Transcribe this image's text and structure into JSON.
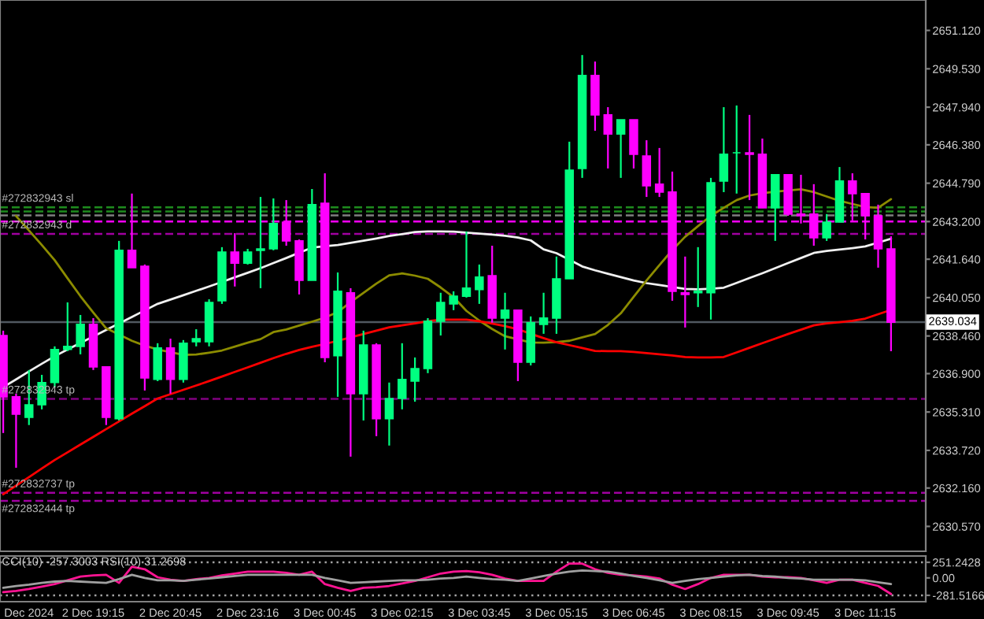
{
  "chart_data": [
    {
      "type": "candlestick",
      "categories": [
        null,
        null,
        null,
        null,
        null,
        null,
        null,
        null,
        null,
        null,
        null,
        null,
        null,
        null,
        null,
        null,
        null,
        null,
        null,
        null,
        null,
        null,
        null,
        null,
        null,
        null,
        null,
        null,
        null,
        null,
        null,
        null,
        null,
        null,
        null,
        null,
        null,
        null,
        null,
        null,
        null,
        null,
        null,
        null,
        null,
        null,
        null,
        null,
        null,
        null,
        null,
        null,
        null,
        null,
        null,
        null,
        null,
        null,
        null,
        null,
        null,
        null,
        null,
        null,
        null,
        null,
        null,
        null,
        null,
        null
      ],
      "ohlc": [
        [
          2638.48,
          2638.68,
          2634.44,
          2635.94
        ],
        [
          2635.94,
          2636.07,
          2633.0,
          2635.22
        ],
        [
          2635.09,
          2637.05,
          2634.77,
          2635.61
        ],
        [
          2635.61,
          2636.85,
          2635.42,
          2636.53
        ],
        [
          2636.53,
          2638.03,
          2636.33,
          2637.9
        ],
        [
          2637.9,
          2639.85,
          2637.83,
          2638.03
        ],
        [
          2638.03,
          2639.33,
          2637.7,
          2638.94
        ],
        [
          2638.94,
          2639.2,
          2637.05,
          2637.18
        ],
        [
          2637.18,
          2637.18,
          2634.77,
          2635.09
        ],
        [
          2635.03,
          2642.4,
          2634.96,
          2642.01
        ],
        [
          2642.01,
          2644.36,
          2641.29,
          2641.29
        ],
        [
          2641.35,
          2641.42,
          2636.2,
          2636.72
        ],
        [
          2636.66,
          2638.16,
          2636.59,
          2637.96
        ],
        [
          2637.96,
          2638.35,
          2636.07,
          2636.66
        ],
        [
          2636.66,
          2638.29,
          2636.53,
          2638.16
        ],
        [
          2638.22,
          2638.74,
          2638.03,
          2638.35
        ],
        [
          2638.22,
          2639.98,
          2638.03,
          2639.85
        ],
        [
          2639.92,
          2642.14,
          2639.79,
          2641.94
        ],
        [
          2641.94,
          2642.72,
          2640.51,
          2641.48
        ],
        [
          2641.48,
          2642.07,
          2641.42,
          2641.94
        ],
        [
          2642.01,
          2644.22,
          2640.44,
          2642.07
        ],
        [
          2642.07,
          2644.16,
          2642.01,
          2643.12
        ],
        [
          2643.18,
          2644.09,
          2642.2,
          2642.4
        ],
        [
          2642.4,
          2642.46,
          2640.18,
          2640.77
        ],
        [
          2640.77,
          2644.55,
          2640.77,
          2643.9
        ],
        [
          2643.96,
          2645.2,
          2637.37,
          2637.57
        ],
        [
          2637.64,
          2641.09,
          2635.94,
          2640.31
        ],
        [
          2640.25,
          2640.44,
          2633.46,
          2636.07
        ],
        [
          2636.07,
          2638.68,
          2634.96,
          2638.09
        ],
        [
          2638.09,
          2638.16,
          2634.31,
          2635.03
        ],
        [
          2635.03,
          2636.53,
          2633.92,
          2635.87
        ],
        [
          2635.87,
          2638.16,
          2635.42,
          2636.66
        ],
        [
          2636.59,
          2637.57,
          2635.74,
          2637.11
        ],
        [
          2637.11,
          2639.2,
          2636.92,
          2639.07
        ],
        [
          2639.07,
          2640.25,
          2638.48,
          2639.85
        ],
        [
          2639.79,
          2640.31,
          2639.53,
          2640.11
        ],
        [
          2640.11,
          2642.79,
          2640.05,
          2640.44
        ],
        [
          2640.38,
          2641.42,
          2639.79,
          2640.9
        ],
        [
          2640.96,
          2642.2,
          2639.01,
          2639.2
        ],
        [
          2639.2,
          2640.25,
          2637.9,
          2639.53
        ],
        [
          2639.53,
          2639.53,
          2636.59,
          2637.37
        ],
        [
          2637.37,
          2639.27,
          2637.24,
          2639.01
        ],
        [
          2638.94,
          2640.25,
          2638.55,
          2639.2
        ],
        [
          2639.2,
          2641.75,
          2638.55,
          2640.83
        ],
        [
          2640.83,
          2646.51,
          2640.83,
          2645.33
        ],
        [
          2645.4,
          2650.1,
          2645.01,
          2649.25
        ],
        [
          2649.25,
          2649.83,
          2646.96,
          2647.62
        ],
        [
          2647.62,
          2647.94,
          2645.4,
          2646.83
        ],
        [
          2646.83,
          2647.42,
          2645.01,
          2647.42
        ],
        [
          2647.42,
          2647.42,
          2645.4,
          2645.99
        ],
        [
          2645.92,
          2646.57,
          2644.22,
          2644.68
        ],
        [
          2644.75,
          2646.25,
          2644.22,
          2644.42
        ],
        [
          2644.42,
          2645.27,
          2639.92,
          2640.31
        ],
        [
          2640.25,
          2641.75,
          2638.81,
          2640.18
        ],
        [
          2640.25,
          2642.14,
          2639.66,
          2640.31
        ],
        [
          2640.25,
          2645.01,
          2639.14,
          2644.81
        ],
        [
          2644.88,
          2647.94,
          2644.42,
          2645.99
        ],
        [
          2646.05,
          2648.01,
          2644.36,
          2646.05
        ],
        [
          2646.05,
          2647.62,
          2644.09,
          2645.99
        ],
        [
          2645.99,
          2646.64,
          2643.77,
          2643.77
        ],
        [
          2643.77,
          2645.14,
          2642.4,
          2645.14
        ],
        [
          2645.14,
          2645.14,
          2643.44,
          2643.51
        ],
        [
          2643.51,
          2645.14,
          2643.12,
          2643.44
        ],
        [
          2643.51,
          2644.75,
          2642.2,
          2642.53
        ],
        [
          2642.53,
          2643.51,
          2642.4,
          2643.18
        ],
        [
          2643.18,
          2645.46,
          2643.18,
          2644.88
        ],
        [
          2644.88,
          2645.2,
          2643.25,
          2644.36
        ],
        [
          2644.36,
          2644.36,
          2642.46,
          2643.44
        ],
        [
          2643.44,
          2643.9,
          2641.29,
          2642.07
        ],
        [
          2642.07,
          2642.59,
          2637.83,
          2639.03
        ]
      ],
      "colors": [
        "#ff00ff",
        "#ff00ff",
        "#00ff80",
        "#00ff80",
        "#00ff80",
        "#00ff80",
        "#00ff80",
        "#ff00ff",
        "#ff00ff",
        "#00ff80",
        "#ff00ff",
        "#ff00ff",
        "#00ff80",
        "#ff00ff",
        "#00ff80",
        "#00ff80",
        "#00ff80",
        "#00ff80",
        "#ff00ff",
        "#00ff80",
        "#00ff80",
        "#00ff80",
        "#ff00ff",
        "#ff00ff",
        "#00ff80",
        "#ff00ff",
        "#00ff80",
        "#ff00ff",
        "#00ff80",
        "#ff00ff",
        "#00ff80",
        "#00ff80",
        "#00ff80",
        "#00ff80",
        "#00ff80",
        "#00ff80",
        "#00ff80",
        "#00ff80",
        "#ff00ff",
        "#00ff80",
        "#ff00ff",
        "#00ff80",
        "#00ff80",
        "#00ff80",
        "#00ff80",
        "#00ff80",
        "#ff00ff",
        "#ff00ff",
        "#00ff80",
        "#ff00ff",
        "#ff00ff",
        "#ff00ff",
        "#ff00ff",
        "#ff00ff",
        "#00ff80",
        "#00ff80",
        "#00ff80",
        "#00ff80",
        "#ff00ff",
        "#ff00ff",
        "#00ff80",
        "#ff00ff",
        "#ff00ff",
        "#ff00ff",
        "#00ff80",
        "#00ff80",
        "#ff00ff",
        "#ff00ff",
        "#ff00ff",
        "#ff00ff"
      ],
      "series": [
        {
          "type": "line",
          "color": "#f0f0f0",
          "values": [
            2636.34,
            2636.66,
            2636.99,
            2637.31,
            2637.62,
            2637.9,
            2638.17,
            2638.44,
            2638.71,
            2638.98,
            2639.25,
            2639.52,
            2639.79,
            2639.97,
            2640.15,
            2640.33,
            2640.51,
            2640.7,
            2640.89,
            2641.08,
            2641.27,
            2641.48,
            2641.69,
            2641.91,
            2642.12,
            2642.18,
            2642.23,
            2642.32,
            2642.41,
            2642.5,
            2642.6,
            2642.68,
            2642.77,
            2642.79,
            2642.79,
            2642.78,
            2642.74,
            2642.7,
            2642.66,
            2642.61,
            2642.54,
            2642.42,
            2642.05,
            2641.89,
            2641.62,
            2641.34,
            2641.18,
            2641.04,
            2640.9,
            2640.76,
            2640.65,
            2640.57,
            2640.49,
            2640.41,
            2640.39,
            2640.42,
            2640.46,
            2640.66,
            2640.86,
            2641.06,
            2641.27,
            2641.48,
            2641.69,
            2641.9,
            2641.98,
            2642.04,
            2642.1,
            2642.17,
            2642.33,
            2642.49
          ]
        },
        {
          "type": "line",
          "color": "#8c8c00",
          "values": [
            null,
            2643.43,
            2642.83,
            2642.23,
            2641.6,
            2640.85,
            2640.11,
            2639.43,
            2638.78,
            2638.52,
            2638.26,
            2638.06,
            2637.9,
            2637.79,
            2637.68,
            2637.69,
            2637.77,
            2637.86,
            2638.02,
            2638.18,
            2638.33,
            2638.62,
            2638.73,
            2638.89,
            2639.05,
            2639.22,
            2639.45,
            2639.86,
            2640.25,
            2640.63,
            2640.97,
            2641.05,
            2640.96,
            2640.83,
            2640.47,
            2640.07,
            2639.5,
            2639.1,
            2638.75,
            2638.45,
            2638.32,
            2638.19,
            2638.18,
            2638.21,
            2638.26,
            2638.4,
            2638.54,
            2638.92,
            2639.4,
            2640.08,
            2640.76,
            2641.4,
            2642.02,
            2642.57,
            2643.01,
            2643.44,
            2643.77,
            2644.09,
            2644.28,
            2644.37,
            2644.44,
            2644.49,
            2644.54,
            2644.42,
            2644.24,
            2644.06,
            2643.93,
            2643.8,
            2643.77,
            2644.13
          ]
        },
        {
          "type": "line",
          "color": "#ff0000",
          "values": [
            2631.9,
            2632.26,
            2632.61,
            2632.97,
            2633.32,
            2633.64,
            2633.96,
            2634.28,
            2634.6,
            2634.92,
            2635.24,
            2635.55,
            2635.87,
            2636.05,
            2636.23,
            2636.41,
            2636.59,
            2636.78,
            2636.97,
            2637.16,
            2637.35,
            2637.54,
            2637.72,
            2637.88,
            2638.01,
            2638.13,
            2638.26,
            2638.4,
            2638.54,
            2638.68,
            2638.82,
            2638.9,
            2638.98,
            2639.07,
            2639.14,
            2639.14,
            2639.14,
            2639.07,
            2638.97,
            2638.87,
            2638.74,
            2638.55,
            2638.37,
            2638.2,
            2638.08,
            2637.96,
            2637.84,
            2637.83,
            2637.83,
            2637.8,
            2637.75,
            2637.7,
            2637.65,
            2637.59,
            2637.57,
            2637.57,
            2637.59,
            2637.78,
            2637.97,
            2638.16,
            2638.35,
            2638.54,
            2638.72,
            2638.9,
            2638.98,
            2639.03,
            2639.09,
            2639.18,
            2639.36,
            2639.54
          ]
        }
      ],
      "ref_lines": [
        {
          "axis": "y",
          "value": 2643.79,
          "color": "#1e8c1e",
          "line_style": "dashed",
          "label": "#272832943 sl"
        },
        {
          "axis": "y",
          "value": 2643.62,
          "color": "#1e8c1e",
          "line_style": "dashed"
        },
        {
          "axis": "y",
          "value": 2643.46,
          "color": "#808080",
          "line_style": "dashed"
        },
        {
          "axis": "y",
          "value": 2643.2,
          "color": "#ff00ff",
          "line_style": "dashed"
        },
        {
          "axis": "y",
          "value": 2642.69,
          "color": "#a000a0",
          "line_style": "dashed",
          "label": "#272832943 d"
        },
        {
          "axis": "y",
          "value": 2639.034,
          "color": "#505860",
          "line_style": "solid",
          "label": "2639.034"
        },
        {
          "axis": "y",
          "value": 2635.85,
          "color": "#800080",
          "line_style": "dashed",
          "label": "#272832943 tp"
        },
        {
          "axis": "y",
          "value": 2631.96,
          "color": "#a000a0",
          "line_style": "dashed",
          "label": "#272832737 tp"
        },
        {
          "axis": "y",
          "value": 2631.63,
          "color": "#a000a0",
          "line_style": "dashed",
          "label": "#272832444 tp"
        }
      ],
      "ylim": [
        2629.54,
        2652.38
      ],
      "yticks": [
        {
          "value": 2651.12,
          "label": "2651.120"
        },
        {
          "value": 2649.53,
          "label": "2649.530"
        },
        {
          "value": 2647.94,
          "label": "2647.940"
        },
        {
          "value": 2646.38,
          "label": "2646.380"
        },
        {
          "value": 2644.79,
          "label": "2644.790"
        },
        {
          "value": 2643.2,
          "label": "2643.200"
        },
        {
          "value": 2641.64,
          "label": "2641.640"
        },
        {
          "value": 2640.05,
          "label": "2640.050"
        },
        {
          "value": 2638.46,
          "label": "2638.460"
        },
        {
          "value": 2636.9,
          "label": "2636.900"
        },
        {
          "value": 2635.31,
          "label": "2635.310"
        },
        {
          "value": 2633.72,
          "label": "2633.720"
        },
        {
          "value": 2632.16,
          "label": "2632.160"
        },
        {
          "value": 2630.57,
          "label": "2630.570"
        }
      ],
      "tick_labels": "y"
    },
    {
      "type": "line",
      "title": "CCI(10) -257.3003 RSI(10) 31.2698",
      "categories": [
        null,
        null,
        "Dec 2024",
        null,
        null,
        null,
        null,
        "2 Dec 19:15",
        null,
        null,
        null,
        null,
        null,
        "2 Dec 20:45",
        null,
        null,
        null,
        null,
        null,
        "2 Dec 23:16",
        null,
        null,
        null,
        null,
        null,
        "3 Dec 00:45",
        null,
        null,
        null,
        null,
        null,
        "3 Dec 02:15",
        null,
        null,
        null,
        null,
        null,
        "3 Dec 03:45",
        null,
        null,
        null,
        null,
        null,
        "3 Dec 05:15",
        null,
        null,
        null,
        null,
        null,
        "3 Dec 06:45",
        null,
        null,
        null,
        null,
        null,
        "3 Dec 08:15",
        null,
        null,
        null,
        null,
        null,
        "3 Dec 09:45",
        null,
        null,
        null,
        null,
        null,
        "3 Dec 11:15",
        null,
        null
      ],
      "series": [
        {
          "color": "#ff1493",
          "values": [
            -230,
            -210,
            -180,
            -140,
            -100,
            -40,
            20,
            40,
            50,
            -80,
            180,
            140,
            10,
            -30,
            -50,
            -20,
            0,
            40,
            70,
            100,
            100,
            100,
            80,
            50,
            100,
            -100,
            -160,
            -210,
            -160,
            -150,
            -130,
            -90,
            -50,
            10,
            70,
            100,
            110,
            90,
            50,
            -10,
            -50,
            -50,
            -50,
            100,
            230,
            230,
            140,
            80,
            50,
            40,
            20,
            -10,
            -110,
            -180,
            -100,
            0,
            50,
            50,
            50,
            20,
            10,
            10,
            0,
            -40,
            -80,
            -30,
            -30,
            -80,
            -130,
            -260
          ]
        },
        {
          "color": "#a0a0a0",
          "values": [
            -160,
            -130,
            -110,
            -80,
            -60,
            -50,
            -60,
            -70,
            -80,
            -20,
            50,
            0,
            -40,
            -40,
            -50,
            -30,
            -10,
            10,
            30,
            50,
            50,
            50,
            50,
            50,
            50,
            0,
            -40,
            -80,
            -70,
            -60,
            -50,
            -40,
            -40,
            -30,
            -10,
            0,
            20,
            0,
            -20,
            -30,
            -50,
            -10,
            30,
            70,
            100,
            120,
            110,
            100,
            70,
            30,
            0,
            -40,
            -80,
            -50,
            -20,
            0,
            20,
            40,
            50,
            30,
            20,
            0,
            -10,
            -30,
            -30,
            -30,
            -30,
            -40,
            -70,
            -100
          ]
        }
      ],
      "ref_lines": [
        {
          "axis": "y",
          "value": 251.2428,
          "color": "#a0a0a0",
          "line_style": "dotted"
        },
        {
          "axis": "y",
          "value": -281.5166,
          "color": "#a0a0a0",
          "line_style": "dotted"
        }
      ],
      "ylim": [
        -384,
        353
      ],
      "yticks": [
        {
          "value": 251.2428,
          "label": "251.2428"
        },
        {
          "value": 0,
          "label": "0.00"
        },
        {
          "value": -281.5166,
          "label": "-281.5166"
        }
      ]
    }
  ]
}
